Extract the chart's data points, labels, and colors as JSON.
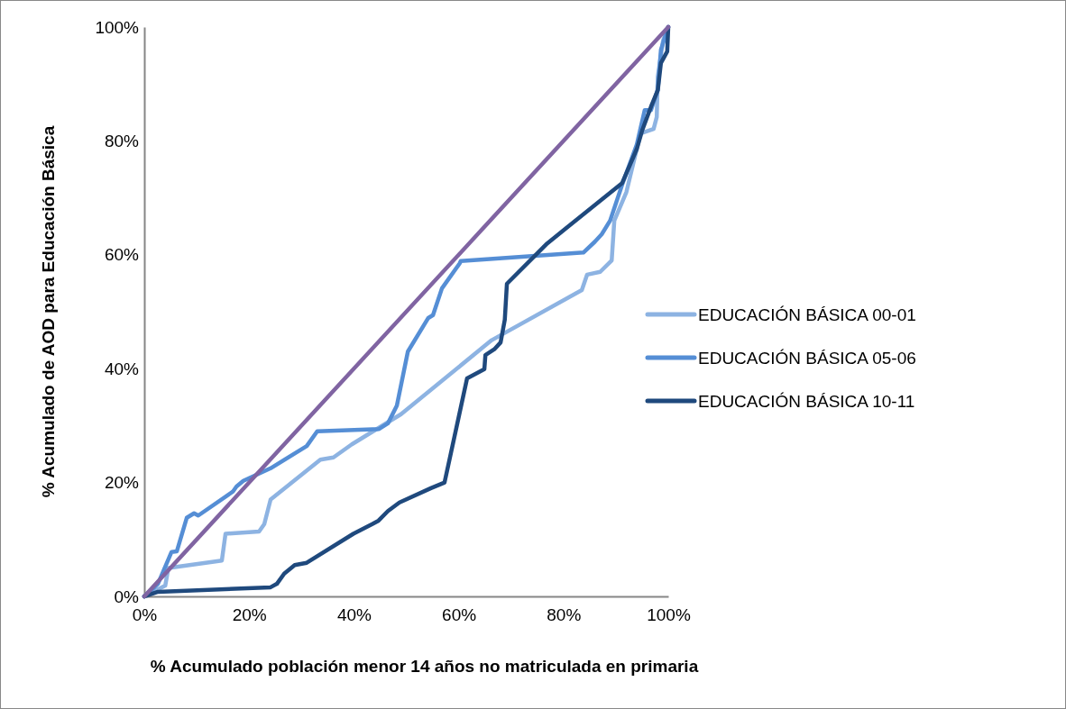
{
  "chart_data": {
    "type": "line",
    "xlabel": "% Acumulado población menor 14 años no matriculada en primaria",
    "ylabel": "% Acumulado de AOD para Educación Básica",
    "xlim": [
      0,
      100
    ],
    "ylim": [
      0,
      100
    ],
    "xticks": [
      {
        "value": 0,
        "label": "0%"
      },
      {
        "value": 20,
        "label": "20%"
      },
      {
        "value": 40,
        "label": "40%"
      },
      {
        "value": 60,
        "label": "60%"
      },
      {
        "value": 80,
        "label": "80%"
      },
      {
        "value": 100,
        "label": "100%"
      }
    ],
    "yticks": [
      {
        "value": 0,
        "label": "0%"
      },
      {
        "value": 20,
        "label": "20%"
      },
      {
        "value": 40,
        "label": "40%"
      },
      {
        "value": 60,
        "label": "60%"
      },
      {
        "value": 80,
        "label": "80%"
      },
      {
        "value": 100,
        "label": "100%"
      }
    ],
    "grid": false,
    "legend": "right",
    "marker": "none",
    "line_style": "solid",
    "series": [
      {
        "name": "EDUCACIÓN BÁSICA 00-01",
        "color": "#8db3e2",
        "x": [
          0,
          4,
          4.6,
          14.8,
          15.5,
          21.9,
          22.9,
          24.1,
          33.6,
          36.1,
          39.6,
          49,
          66.3,
          83.5,
          84.5,
          87,
          89.2,
          89.7,
          92,
          94.7,
          97.2,
          97.8,
          98,
          99,
          100
        ],
        "values": [
          0,
          1.9,
          5,
          6.3,
          11,
          11.4,
          12.7,
          17,
          24,
          24.4,
          26.7,
          32,
          45,
          53.8,
          56.5,
          57,
          59,
          66,
          71,
          81.3,
          82.1,
          84.2,
          91.3,
          97.6,
          100
        ]
      },
      {
        "name": "EDUCACIÓN BÁSICA 05-06",
        "color": "#558ed5",
        "x": [
          0,
          2.6,
          5.2,
          6.2,
          8.1,
          9.5,
          10.3,
          16.9,
          17.6,
          18.9,
          24.1,
          31,
          33,
          44.8,
          46.5,
          48.2,
          50.3,
          54.2,
          55.1,
          56.8,
          60.2,
          60.4,
          83.8,
          86,
          87.3,
          88.9,
          91.2,
          94,
          95.5,
          96.7,
          98,
          98.6,
          100
        ],
        "values": [
          0,
          2.2,
          7.8,
          7.9,
          13.8,
          14.6,
          14.2,
          18.4,
          19.3,
          20.3,
          22.5,
          26.4,
          29,
          29.4,
          30.4,
          33.5,
          43,
          48.9,
          49.4,
          54.1,
          58.5,
          58.9,
          60.4,
          62.3,
          63.6,
          66,
          72.3,
          79.4,
          85.4,
          85.4,
          89,
          96,
          100
        ]
      },
      {
        "name": "EDUCACIÓN BÁSICA 10-11",
        "color": "#1f497d",
        "x": [
          0,
          2.6,
          24.1,
          25.3,
          26.7,
          28.7,
          31,
          39.9,
          43.5,
          44.7,
          46.5,
          48.7,
          54.7,
          57.3,
          61.6,
          64.9,
          65.1,
          66.8,
          68,
          68.8,
          69.2,
          76.9,
          91.2,
          94,
          95,
          96.7,
          98,
          98.6,
          99.8,
          100
        ],
        "values": [
          0,
          0.8,
          1.6,
          2.2,
          4,
          5.5,
          5.9,
          11,
          12.7,
          13.3,
          15,
          16.5,
          19,
          20,
          38.3,
          39.9,
          42.4,
          43.4,
          44.6,
          48.6,
          54.9,
          62,
          72.6,
          78.6,
          81.8,
          86,
          88.9,
          93.7,
          95.7,
          100
        ]
      },
      {
        "color": "#8064a2",
        "x": [
          0,
          100
        ],
        "values": [
          0,
          100
        ]
      }
    ]
  }
}
